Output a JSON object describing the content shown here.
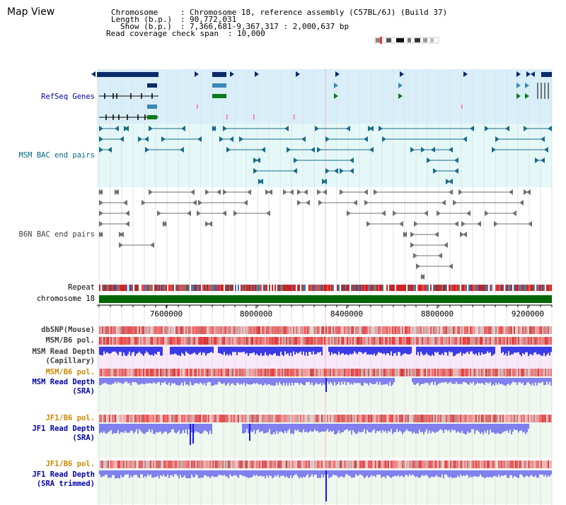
{
  "view_title": "Map View",
  "info": {
    "chromosome_key": "Chromosome",
    "chromosome_value": "Chromosome 18, reference assembly (C57BL/6J) (Build 37)",
    "length_key": "Length (b.p.)",
    "length_value": "90,772,031",
    "show_key": "Show (b.p.)",
    "show_value": "7,366,681-9,367,317 : 2,000,637 bp",
    "coverage_key": "Read coverage check span",
    "coverage_value": "10,000"
  },
  "tracks": {
    "refseq": "RefSeq Genes",
    "msm_bac": "MSM BAC end pairs",
    "b6n_bac": "B6N BAC end pairs",
    "repeat": "Repeat",
    "chromosome": "chromosome 18",
    "dbsnp": "dbSNP(Mouse)",
    "msm_b6_pol_1": "MSM/B6 pol.",
    "msm_depth_cap_1": "MSM Read Depth",
    "msm_depth_cap_2": "(Capillary)",
    "msm_b6_pol_2": "MSM/B6 pol.",
    "msm_depth_sra_1": "MSM Read Depth",
    "msm_depth_sra_2": "(SRA)",
    "jf1_b6_pol_1": "JF1/B6 pol.",
    "jf1_depth_sra_1": "JF1 Read Depth",
    "jf1_depth_sra_2": "(SRA)",
    "jf1_b6_pol_2": "JF1/B6 pol.",
    "jf1_depth_trim_1": "JF1 Read Depth",
    "jf1_depth_trim_2": "(SRA trimmed)"
  },
  "axis": {
    "ticks": [
      "7600000",
      "8000000",
      "8400000",
      "8800000",
      "9200000"
    ]
  },
  "colors": {
    "gene_dark": "#0a2a6a",
    "gene_blue": "#3a88b8",
    "gene_green": "#0a7a1a",
    "msm_bac": "#1a6a8a",
    "b6n_bac": "#707070",
    "chromosome_bar": "#006600",
    "label_blue": "#0000aa",
    "label_teal": "#006a7a",
    "label_orange": "#cc8800",
    "label_grey": "#404040",
    "depth_dark": "#1a1aee",
    "depth_light": "#8080ee"
  }
}
